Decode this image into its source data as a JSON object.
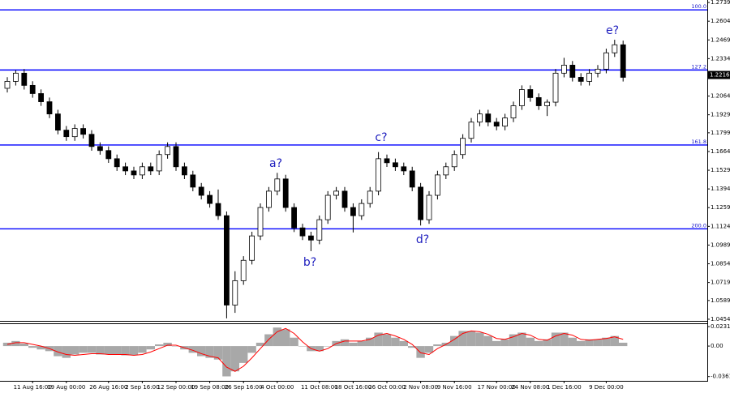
{
  "chart_data": {
    "type": "candlestick",
    "color": "#000000",
    "categories": [
      null,
      null,
      null,
      "11 Aug 16:00",
      null,
      null,
      null,
      "19 Aug 00:00",
      null,
      null,
      null,
      null,
      "26 Aug 16:00",
      null,
      null,
      null,
      "2 Sep 16:00",
      null,
      null,
      null,
      "12 Sep 00:00",
      null,
      null,
      null,
      "19 Sep 08:00",
      null,
      null,
      null,
      "26 Sep 16:00",
      null,
      null,
      null,
      "4 Oct 00:00",
      null,
      null,
      null,
      null,
      "11 Oct 08:00",
      null,
      null,
      null,
      "18 Oct 16:00",
      null,
      null,
      null,
      "26 Oct 00:00",
      null,
      null,
      null,
      "2 Nov 08:00",
      null,
      null,
      null,
      "9 Nov 16:00",
      null,
      null,
      null,
      null,
      "17 Nov 00:00",
      null,
      null,
      null,
      "24 Nov 08:00",
      null,
      null,
      null,
      "1 Dec 16:00",
      null,
      null,
      null,
      null,
      "9 Dec 00:00",
      null,
      null
    ],
    "open": [
      1.212,
      1.217,
      1.2229,
      1.2141,
      1.2082,
      1.2023,
      1.1935,
      1.1818,
      1.1771,
      1.183,
      1.1788,
      1.17,
      1.1671,
      1.1612,
      1.1554,
      1.1524,
      1.1495,
      1.1554,
      1.1524,
      1.1642,
      1.17,
      1.1554,
      1.1495,
      1.1407,
      1.1348,
      1.1289,
      1.1201,
      1.0556,
      1.0732,
      1.0879,
      1.1055,
      1.126,
      1.1378,
      1.1466,
      1.126,
      1.1113,
      1.1055,
      1.1025,
      1.1172,
      1.1348,
      1.1378,
      1.126,
      1.1201,
      1.1289,
      1.1378,
      1.1612,
      1.1583,
      1.1554,
      1.1524,
      1.1407,
      1.1172,
      1.1348,
      1.1495,
      1.1554,
      1.1642,
      1.1759,
      1.1876,
      1.1935,
      1.1876,
      1.1847,
      1.1906,
      1.1994,
      1.2111,
      1.2053,
      1.1994,
      1.202,
      1.2229,
      1.2287,
      1.2199,
      1.217,
      1.2229,
      1.2258,
      1.2376,
      1.2434
    ],
    "high": [
      1.22,
      1.225,
      1.2259,
      1.2171,
      1.2112,
      1.2053,
      1.1965,
      1.1848,
      1.186,
      1.186,
      1.1818,
      1.173,
      1.1701,
      1.1642,
      1.1584,
      1.1554,
      1.1584,
      1.1584,
      1.1672,
      1.173,
      1.173,
      1.1584,
      1.1525,
      1.1437,
      1.1378,
      1.139,
      1.1231,
      1.08,
      1.0909,
      1.1085,
      1.129,
      1.1408,
      1.151,
      1.1496,
      1.129,
      1.1143,
      1.1085,
      1.1202,
      1.1378,
      1.1408,
      1.1408,
      1.129,
      1.1319,
      1.1408,
      1.166,
      1.1642,
      1.1613,
      1.1584,
      1.1554,
      1.1437,
      1.1378,
      1.1525,
      1.1584,
      1.1672,
      1.1789,
      1.1906,
      1.1965,
      1.1965,
      1.1906,
      1.1936,
      1.2024,
      1.2141,
      1.2141,
      1.2083,
      1.204,
      1.2259,
      1.234,
      1.2317,
      1.2229,
      1.2259,
      1.2288,
      1.2406,
      1.247,
      1.2464
    ],
    "low": [
      1.209,
      1.214,
      1.2111,
      1.2052,
      1.1993,
      1.1905,
      1.1788,
      1.1741,
      1.1741,
      1.1758,
      1.167,
      1.1641,
      1.1582,
      1.1524,
      1.1494,
      1.1465,
      1.1465,
      1.1494,
      1.1494,
      1.1612,
      1.1524,
      1.1465,
      1.1377,
      1.1318,
      1.1259,
      1.1171,
      1.046,
      1.05,
      1.0702,
      1.0849,
      1.1025,
      1.123,
      1.1348,
      1.123,
      1.1083,
      1.1025,
      1.0945,
      1.0995,
      1.1142,
      1.1318,
      1.123,
      1.108,
      1.1171,
      1.1259,
      1.1348,
      1.1553,
      1.1524,
      1.1494,
      1.1377,
      1.113,
      1.1142,
      1.1318,
      1.1465,
      1.1524,
      1.1612,
      1.1729,
      1.1846,
      1.1846,
      1.1817,
      1.1817,
      1.1876,
      1.1964,
      1.2023,
      1.1964,
      1.192,
      1.199,
      1.2199,
      1.2169,
      1.214,
      1.214,
      1.2199,
      1.2228,
      1.2346,
      1.2169
    ],
    "close": [
      1.217,
      1.2229,
      1.2141,
      1.2082,
      1.2023,
      1.1935,
      1.1818,
      1.1771,
      1.183,
      1.1788,
      1.17,
      1.1671,
      1.1612,
      1.1554,
      1.1524,
      1.1495,
      1.1554,
      1.1524,
      1.1642,
      1.17,
      1.1554,
      1.1495,
      1.1407,
      1.1348,
      1.1289,
      1.1201,
      1.0556,
      1.0732,
      1.0879,
      1.1055,
      1.126,
      1.1378,
      1.1466,
      1.126,
      1.1113,
      1.1055,
      1.1025,
      1.1172,
      1.1348,
      1.1378,
      1.126,
      1.1201,
      1.1289,
      1.1378,
      1.1612,
      1.1583,
      1.1554,
      1.1524,
      1.1407,
      1.1172,
      1.1348,
      1.1495,
      1.1554,
      1.1642,
      1.1759,
      1.1876,
      1.1935,
      1.1876,
      1.1847,
      1.1906,
      1.1994,
      1.2111,
      1.2053,
      1.1994,
      1.202,
      1.2229,
      1.2287,
      1.2199,
      1.217,
      1.2229,
      1.2258,
      1.2376,
      1.2434,
      1.2199
    ],
    "ylim": [
      1.2757,
      1.0442
    ],
    "yticks": [
      1.2739,
      1.2604,
      1.2469,
      1.2334,
      1.2064,
      1.1929,
      1.1799,
      1.1664,
      1.1529,
      1.1394,
      1.1259,
      1.1124,
      1.0989,
      1.0854,
      1.0719,
      1.0589,
      1.0454
    ],
    "last_price": 1.2216,
    "levels": [
      {
        "label": "100.0",
        "value": 1.2686
      },
      {
        "label": "127.2",
        "value": 1.2252
      },
      {
        "label": "161.8",
        "value": 1.1711
      },
      {
        "label": "200.0",
        "value": 1.1106
      }
    ],
    "level_color": "#0000ff",
    "annotations": [
      "a?",
      "b?",
      "c?",
      "d?",
      "e?"
    ],
    "indicator": {
      "histogram_color": "#a8a8a8",
      "signal_color": "#ff0000",
      "histogram": [
        0.004,
        0.006,
        0.003,
        -0.002,
        -0.004,
        -0.006,
        -0.012,
        -0.014,
        -0.01,
        -0.008,
        -0.008,
        -0.01,
        -0.01,
        -0.01,
        -0.011,
        -0.011,
        -0.008,
        -0.004,
        0.002,
        0.004,
        0.0,
        -0.004,
        -0.008,
        -0.012,
        -0.014,
        -0.016,
        -0.036,
        -0.03,
        -0.02,
        -0.008,
        0.004,
        0.014,
        0.022,
        0.02,
        0.01,
        0.0,
        -0.006,
        -0.006,
        0.0,
        0.006,
        0.008,
        0.004,
        0.006,
        0.01,
        0.016,
        0.014,
        0.01,
        0.006,
        -0.002,
        -0.014,
        -0.008,
        0.002,
        0.004,
        0.012,
        0.018,
        0.018,
        0.016,
        0.012,
        0.006,
        0.008,
        0.014,
        0.016,
        0.01,
        0.006,
        0.008,
        0.016,
        0.016,
        0.01,
        0.006,
        0.008,
        0.008,
        0.01,
        0.012,
        0.004
      ],
      "signal": [
        0.002,
        0.004,
        0.004,
        0.002,
        0.0,
        -0.003,
        -0.007,
        -0.01,
        -0.011,
        -0.01,
        -0.009,
        -0.009,
        -0.01,
        -0.01,
        -0.01,
        -0.011,
        -0.01,
        -0.007,
        -0.003,
        0.001,
        0.001,
        -0.002,
        -0.005,
        -0.009,
        -0.012,
        -0.014,
        -0.025,
        -0.03,
        -0.024,
        -0.014,
        -0.003,
        0.008,
        0.017,
        0.021,
        0.015,
        0.005,
        -0.003,
        -0.006,
        -0.003,
        0.003,
        0.006,
        0.006,
        0.006,
        0.008,
        0.013,
        0.015,
        0.012,
        0.008,
        0.002,
        -0.008,
        -0.01,
        -0.003,
        0.002,
        0.008,
        0.015,
        0.018,
        0.017,
        0.014,
        0.009,
        0.008,
        0.011,
        0.015,
        0.013,
        0.008,
        0.007,
        0.012,
        0.015,
        0.013,
        0.008,
        0.007,
        0.008,
        0.009,
        0.011,
        0.008
      ],
      "ylim": [
        0.028,
        -0.0413
      ],
      "yticks": [
        0.02314,
        {
          "value": 0,
          "label": "0.00"
        },
        -0.03619
      ]
    }
  }
}
